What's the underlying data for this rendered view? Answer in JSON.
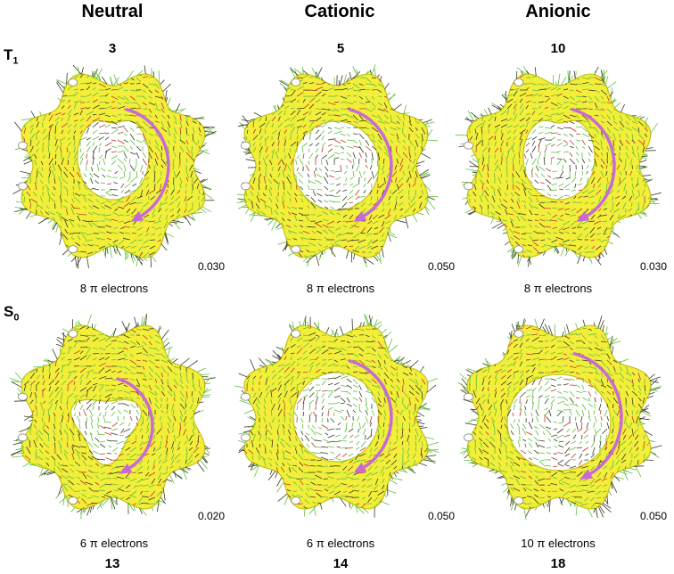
{
  "columns": [
    "Neutral",
    "Cationic",
    "Anionic"
  ],
  "rows": [
    {
      "state_main": "T",
      "state_sub": "1",
      "panels": [
        {
          "compound": "3",
          "threshold": "0.030",
          "electrons": "8 π electrons",
          "hole": "heart"
        },
        {
          "compound": "5",
          "threshold": "0.050",
          "electrons": "8 π electrons",
          "hole": "round"
        },
        {
          "compound": "10",
          "threshold": "0.030",
          "electrons": "8 π electrons",
          "hole": "heart"
        }
      ]
    },
    {
      "state_main": "S",
      "state_sub": "0",
      "panels": [
        {
          "compound": "13",
          "threshold": "0.020",
          "electrons": "6 π electrons",
          "hole": "triangle"
        },
        {
          "compound": "14",
          "threshold": "0.050",
          "electrons": "6 π electrons",
          "hole": "round"
        },
        {
          "compound": "18",
          "threshold": "0.050",
          "electrons": "10 π electrons",
          "hole": "wide"
        }
      ]
    }
  ],
  "colors": {
    "surface": "#f2ee3a",
    "surface_edge": "#c9c316",
    "vector_green": "#5fbf3a",
    "vector_dark": "#3a3a2a",
    "vector_red": "#c0392b",
    "arrow": "#c86ad6"
  }
}
